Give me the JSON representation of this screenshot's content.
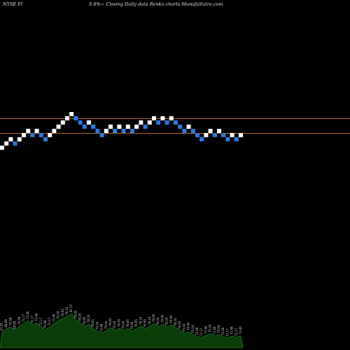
{
  "header": {
    "ticker": "NYSE FI",
    "caption": "S 8%~  Closing Daily data  Renko  charts MunafaSutra.com"
  },
  "colors": {
    "background": "#000000",
    "up_brick": "#ffffff",
    "down_brick": "#2a7ae2",
    "line_level": "#b5651d",
    "volume_fill": "#0b3d0b",
    "volume_stroke": "#1e8f1e",
    "label_text": "#d8d8d8"
  },
  "chart_data": {
    "type": "renko",
    "bricks": [
      {
        "dir": "up",
        "label": "67.55"
      },
      {
        "dir": "up",
        "label": "68.99"
      },
      {
        "dir": "up",
        "label": "70.58"
      },
      {
        "dir": "down",
        "label": "68.99"
      },
      {
        "dir": "up",
        "label": "70.58"
      },
      {
        "dir": "up",
        "label": "72.17"
      },
      {
        "dir": "up",
        "label": "73.46"
      },
      {
        "dir": "down",
        "label": "72.17"
      },
      {
        "dir": "up",
        "label": "73.46"
      },
      {
        "dir": "down",
        "label": "72.17"
      },
      {
        "dir": "down",
        "label": "70.58"
      },
      {
        "dir": "up",
        "label": "72.17"
      },
      {
        "dir": "up",
        "label": "73.46"
      },
      {
        "dir": "up",
        "label": "75.04"
      },
      {
        "dir": "up",
        "label": "76.65"
      },
      {
        "dir": "up",
        "label": "78.24"
      },
      {
        "dir": "up",
        "label": "81.57"
      },
      {
        "dir": "down",
        "label": "79.95"
      },
      {
        "dir": "down",
        "label": "78.24"
      },
      {
        "dir": "down",
        "label": "76.65"
      },
      {
        "dir": "up",
        "label": "78.24"
      },
      {
        "dir": "down",
        "label": "76.65"
      },
      {
        "dir": "down",
        "label": "75.04"
      },
      {
        "dir": "down",
        "label": "73.46"
      },
      {
        "dir": "up",
        "label": "75.04"
      },
      {
        "dir": "up",
        "label": "76.65"
      },
      {
        "dir": "down",
        "label": "75.04"
      },
      {
        "dir": "up",
        "label": "76.65"
      },
      {
        "dir": "down",
        "label": "75.04"
      },
      {
        "dir": "up",
        "label": "76.65"
      },
      {
        "dir": "down",
        "label": "75.04"
      },
      {
        "dir": "up",
        "label": "76.65"
      },
      {
        "dir": "up",
        "label": "78.24"
      },
      {
        "dir": "down",
        "label": "76.65"
      },
      {
        "dir": "up",
        "label": "78.24"
      },
      {
        "dir": "up",
        "label": "79.95"
      },
      {
        "dir": "down",
        "label": "78.24"
      },
      {
        "dir": "up",
        "label": "79.95"
      },
      {
        "dir": "down",
        "label": "78.24"
      },
      {
        "dir": "up",
        "label": "79.95"
      },
      {
        "dir": "down",
        "label": "78.24"
      },
      {
        "dir": "down",
        "label": "76.65"
      },
      {
        "dir": "down",
        "label": "75.04"
      },
      {
        "dir": "up",
        "label": "76.65"
      },
      {
        "dir": "down",
        "label": "75.04"
      },
      {
        "dir": "down",
        "label": "73.46"
      },
      {
        "dir": "down",
        "label": "72.17"
      },
      {
        "dir": "up",
        "label": "73.46"
      },
      {
        "dir": "up",
        "label": "75.04"
      },
      {
        "dir": "down",
        "label": "73.46"
      },
      {
        "dir": "up",
        "label": "75.04"
      },
      {
        "dir": "down",
        "label": "73.46"
      },
      {
        "dir": "down",
        "label": "72.17"
      },
      {
        "dir": "up",
        "label": "73.46"
      },
      {
        "dir": "down",
        "label": "72.17"
      },
      {
        "dir": "up",
        "label": "73.46"
      }
    ],
    "volume": [
      0.45,
      0.55,
      0.6,
      0.5,
      0.62,
      0.7,
      0.78,
      0.66,
      0.72,
      0.6,
      0.52,
      0.6,
      0.7,
      0.78,
      0.85,
      0.9,
      0.98,
      0.8,
      0.72,
      0.62,
      0.68,
      0.55,
      0.48,
      0.42,
      0.5,
      0.58,
      0.5,
      0.56,
      0.5,
      0.55,
      0.48,
      0.55,
      0.62,
      0.55,
      0.62,
      0.7,
      0.6,
      0.68,
      0.6,
      0.66,
      0.58,
      0.5,
      0.42,
      0.46,
      0.38,
      0.32,
      0.3,
      0.36,
      0.4,
      0.34,
      0.38,
      0.32,
      0.28,
      0.34,
      0.3,
      0.35
    ]
  }
}
